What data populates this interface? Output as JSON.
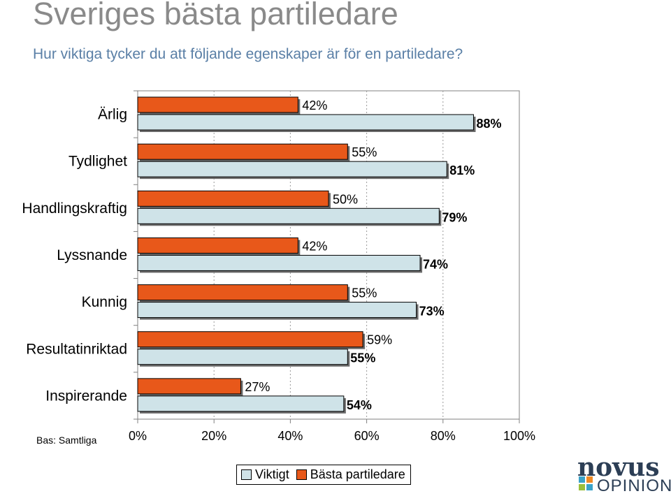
{
  "title": "Sveriges bästa partiledare",
  "subtitle": "Hur viktiga tycker du att följande egenskaper är för en partiledare?",
  "base_note": "Bas: Samtliga",
  "legend": [
    {
      "label": "Viktigt",
      "color": "#cfe3e8"
    },
    {
      "label": "Bästa partiledare",
      "color": "#e8581a"
    }
  ],
  "logo": {
    "top": "novus",
    "bottom": "OPINION"
  },
  "chart_data": {
    "type": "bar",
    "orientation": "horizontal",
    "categories": [
      "Ärlig",
      "Tydlighet",
      "Handlingskraftig",
      "Lyssnande",
      "Kunnig",
      "Resultatinriktad",
      "Inspirerande"
    ],
    "series": [
      {
        "name": "Bästa partiledare",
        "color": "#e8581a",
        "values": [
          42,
          55,
          50,
          42,
          55,
          59,
          27
        ],
        "labels": [
          "42%",
          "55%",
          "50%",
          "42%",
          "55%",
          "59%",
          "27%"
        ]
      },
      {
        "name": "Viktigt",
        "color": "#cfe3e8",
        "values": [
          88,
          81,
          79,
          74,
          73,
          55,
          54
        ],
        "labels": [
          "88%",
          "81%",
          "79%",
          "74%",
          "73%",
          "55%",
          "54%"
        ]
      }
    ],
    "xlim": [
      0,
      100
    ],
    "x_ticks": [
      "0%",
      "20%",
      "40%",
      "60%",
      "80%",
      "100%"
    ],
    "grid": "vertical dashed",
    "legend_position": "bottom"
  }
}
